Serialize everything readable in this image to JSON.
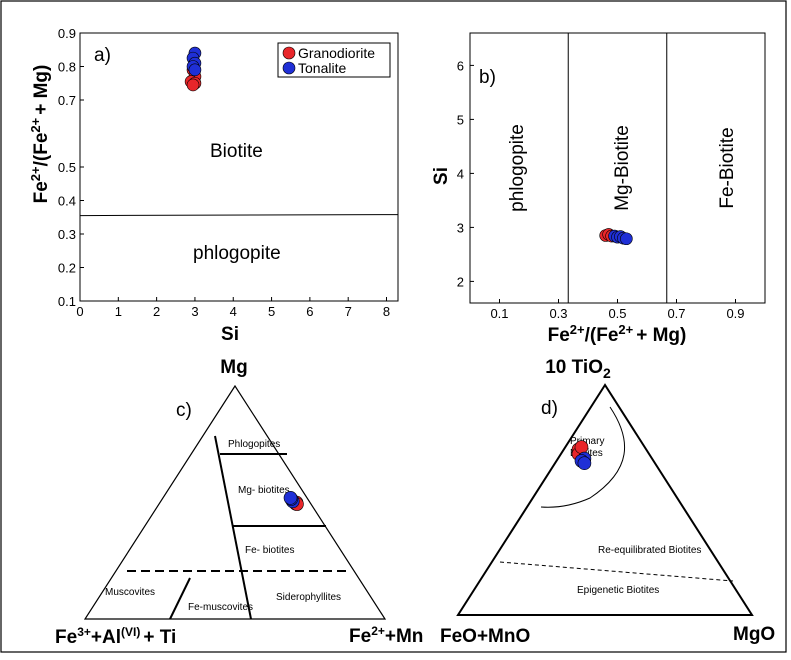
{
  "colors": {
    "granodiorite": "#e8262a",
    "tonalite": "#1f2fd6",
    "stroke": "#000000"
  },
  "chart_data": [
    {
      "type": "scatter",
      "panel_label": "a)",
      "xlabel": "Si",
      "ylabel": "Fe2+/(Fe2+ + Mg)",
      "ylabel_parts": [
        "Fe",
        "2+",
        "/(Fe",
        "2+",
        "+ Mg)"
      ],
      "xlim": [
        0,
        8.3
      ],
      "ylim": [
        0.1,
        0.9
      ],
      "xticks": [
        0,
        1,
        2,
        3,
        4,
        5,
        6,
        7,
        8
      ],
      "yticks": [
        0.1,
        0.2,
        0.3,
        0.4,
        0.5,
        0.7,
        0.8,
        0.9
      ],
      "boundary_y": [
        0.355,
        0.358
      ],
      "regions": [
        "Biotite",
        "phlogopite"
      ],
      "legend": [
        "Granodiorite",
        "Tonalite"
      ],
      "legend_position": "top-right",
      "series": [
        {
          "name": "Granodiorite",
          "x": [
            2.95,
            3.0,
            2.9,
            3.0,
            2.95
          ],
          "y": [
            0.79,
            0.77,
            0.755,
            0.75,
            0.745
          ]
        },
        {
          "name": "Tonalite",
          "x": [
            3.0,
            2.95,
            3.0,
            2.95,
            3.0
          ],
          "y": [
            0.84,
            0.825,
            0.81,
            0.8,
            0.79
          ]
        }
      ]
    },
    {
      "type": "scatter",
      "panel_label": "b)",
      "xlabel": "Fe2+/(Fe2+ + Mg)",
      "xlabel_parts": [
        "Fe",
        "2+",
        "/(Fe",
        "2+",
        "+ Mg)"
      ],
      "ylabel": "Si",
      "xlim": [
        0.0,
        1.0
      ],
      "ylim": [
        1.6,
        6.6
      ],
      "xticks": [
        0.1,
        0.3,
        0.5,
        0.7,
        0.9
      ],
      "yticks": [
        2,
        3,
        4,
        5,
        6
      ],
      "boundaries_x": [
        0.333,
        0.667
      ],
      "regions": [
        "phlogopite",
        "Mg-Biotite",
        "Fe-Biotite"
      ],
      "series": [
        {
          "name": "Granodiorite",
          "x": [
            0.46,
            0.47,
            0.48
          ],
          "y": [
            2.85,
            2.87,
            2.84
          ]
        },
        {
          "name": "Tonalite",
          "x": [
            0.49,
            0.5,
            0.51,
            0.52,
            0.53
          ],
          "y": [
            2.84,
            2.82,
            2.83,
            2.8,
            2.79
          ]
        }
      ]
    },
    {
      "type": "ternary",
      "panel_label": "c)",
      "apex_top": "Mg",
      "apex_left_parts": [
        "Fe",
        "3+",
        "+Al",
        "(VI)",
        "+ Ti"
      ],
      "apex_right_parts": [
        "Fe",
        "2+",
        "+Mn"
      ],
      "fields": [
        "Phlogopites",
        "Mg- biotites",
        "Fe- biotites",
        "Muscovites",
        "Fe-muscovites",
        "Siderophyllites"
      ],
      "series": [
        {
          "name": "Granodiorite",
          "points": [
            [
              0.495,
              0.455
            ],
            [
              0.5,
              0.455
            ],
            [
              0.493,
              0.46
            ]
          ]
        },
        {
          "name": "Tonalite",
          "points": [
            [
              0.505,
              0.44
            ],
            [
              0.515,
              0.43
            ],
            [
              0.52,
              0.425
            ]
          ]
        }
      ]
    },
    {
      "type": "ternary",
      "panel_label": "d)",
      "apex_top": "10 TiO2",
      "apex_top_parts": [
        "10 TiO",
        "2"
      ],
      "apex_left": "FeO+MnO",
      "apex_right": "MgO",
      "fields": [
        "Primary Biotites",
        "Re-equilibrated Biotites",
        "Epigenetic Biotites"
      ],
      "series": [
        {
          "name": "Granodiorite",
          "points": [
            [
              0.72,
              0.05
            ],
            [
              0.7,
              0.06
            ],
            [
              0.73,
              0.055
            ]
          ]
        },
        {
          "name": "Tonalite",
          "points": [
            [
              0.68,
              0.09
            ],
            [
              0.67,
              0.085
            ],
            [
              0.66,
              0.1
            ]
          ]
        }
      ]
    }
  ]
}
